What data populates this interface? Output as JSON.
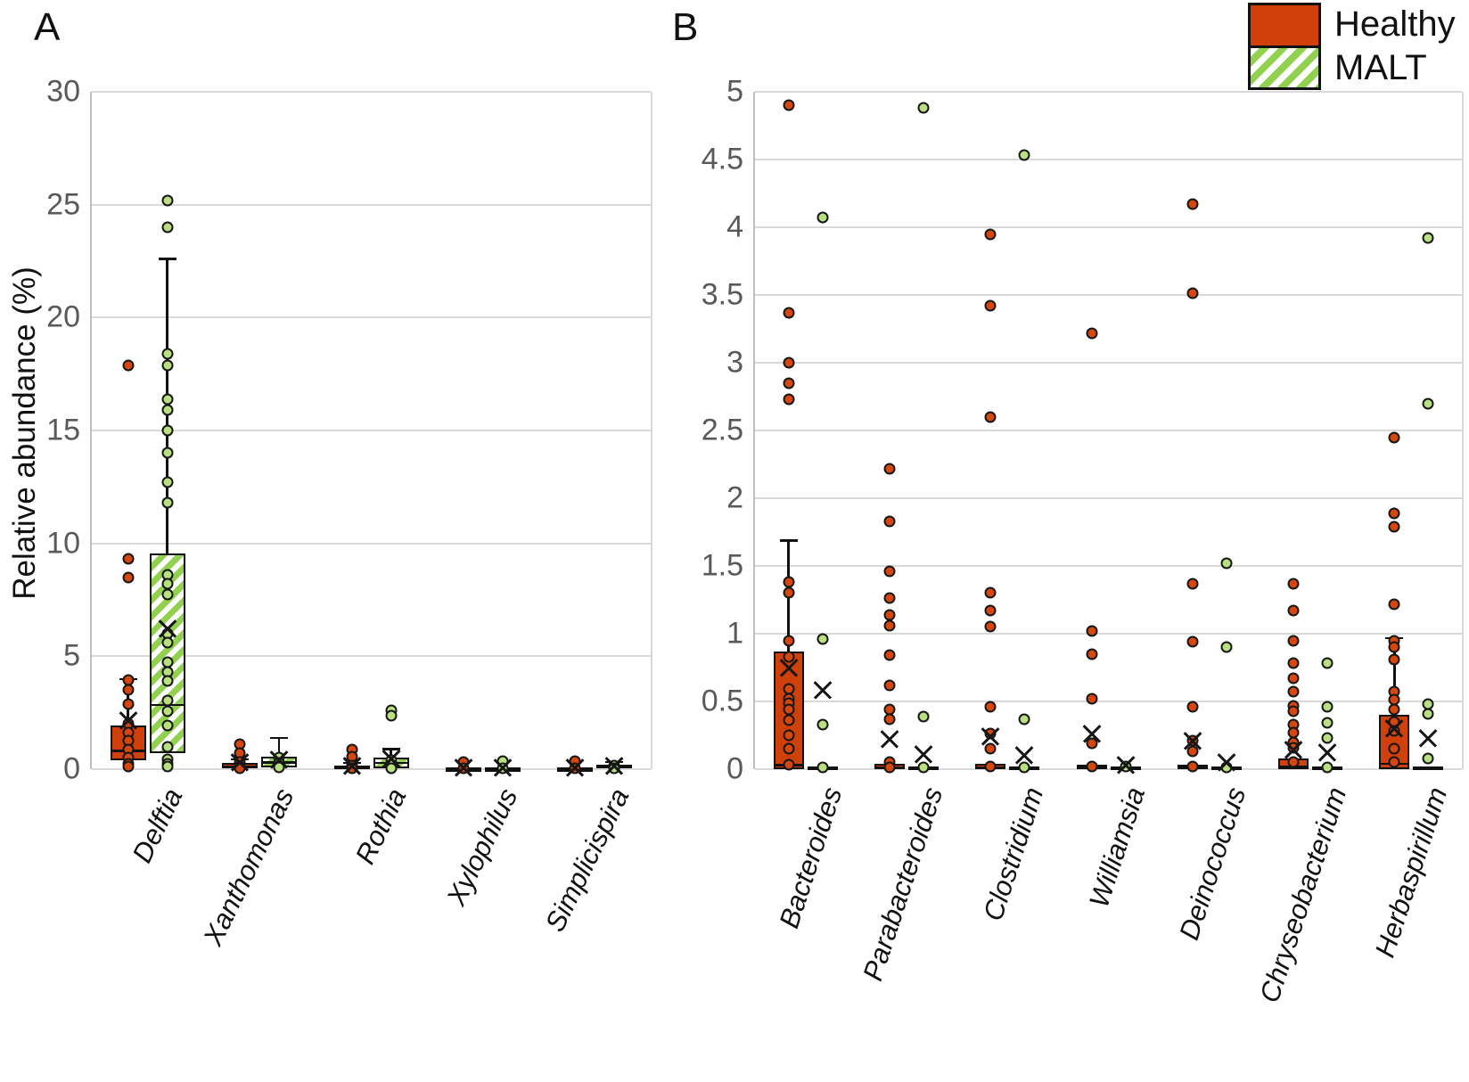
{
  "page": {
    "panel_a_label": "A",
    "panel_b_label": "B"
  },
  "legend": {
    "items": [
      {
        "label": "Healthy",
        "swatch": "solid-red"
      },
      {
        "label": "MALT",
        "swatch": "green-diagonal-hatch"
      }
    ]
  },
  "colors": {
    "healthy_fill": "#cf400b",
    "healthy_point_fill": "#d6470d",
    "malt_stripe": "#92d050",
    "malt_point_fill": "#b9e07f",
    "grid": "#d9d9d9",
    "axis": "#bfbfbf",
    "tick_text": "#595959",
    "marker_outline": "#161616"
  },
  "chart_data": [
    {
      "id": "A",
      "type": "box",
      "title": "",
      "ylabel": "Relative abundance (%)",
      "ylim": [
        0,
        30
      ],
      "yticks": [
        0,
        5,
        10,
        15,
        20,
        25,
        30
      ],
      "ytick_labels": [
        "0",
        "5",
        "10",
        "15",
        "20",
        "25",
        "30"
      ],
      "grid": true,
      "legend_position": "top-right",
      "categories": [
        "Delftia",
        "Xanthomonas",
        "Rothia",
        "Xylophilus",
        "Simplicispira"
      ],
      "series": [
        {
          "name": "Healthy",
          "entries": [
            {
              "box": [
                0.4,
                0.8,
                1.95
              ],
              "whisker_high": 4.0,
              "mean": 2.15,
              "points": [
                17.9,
                9.3,
                8.5,
                3.95,
                3.5,
                2.9,
                2.0,
                1.6,
                1.25,
                0.85,
                0.5,
                0.25,
                0.1
              ]
            },
            {
              "box": [
                0.04,
                0.12,
                0.27
              ],
              "whisker_high": 0.45,
              "mean": 0.3,
              "points": [
                1.1,
                0.72,
                0.3,
                0.12,
                0.03
              ]
            },
            {
              "box": [
                0.02,
                0.07,
                0.16
              ],
              "whisker_high": 0.28,
              "mean": 0.13,
              "points": [
                0.85,
                0.55,
                0.14,
                0.03
              ]
            },
            {
              "box": [
                0,
                0.01,
                0.03
              ],
              "whisker_high": null,
              "mean": 0.06,
              "points": [
                0.3,
                0.02
              ]
            },
            {
              "box": [
                0,
                0.01,
                0.03
              ],
              "whisker_high": null,
              "mean": 0.06,
              "points": [
                0.35,
                0.02
              ]
            }
          ]
        },
        {
          "name": "MALT",
          "entries": [
            {
              "box": [
                0.7,
                2.85,
                9.55
              ],
              "whisker_high": 22.6,
              "mean": 6.2,
              "points": [
                25.2,
                24.0,
                18.4,
                17.9,
                16.4,
                15.9,
                15.0,
                14.0,
                12.7,
                11.8,
                8.6,
                8.2,
                7.75,
                6.0,
                5.6,
                4.75,
                4.3,
                3.9,
                3.05,
                2.55,
                1.95,
                1.0,
                0.45,
                0.25,
                0.1
              ]
            },
            {
              "box": [
                0.07,
                0.3,
                0.55
              ],
              "whisker_high": 1.4,
              "mean": 0.4,
              "points": [
                0.5,
                0.28,
                0.08
              ]
            },
            {
              "box": [
                0.03,
                0.28,
                0.5
              ],
              "whisker_high": 0.9,
              "mean": 0.45,
              "points": [
                2.6,
                2.35,
                0.4,
                0.2,
                0.05
              ]
            },
            {
              "box": [
                0,
                0.01,
                0.03
              ],
              "whisker_high": null,
              "mean": 0.06,
              "points": [
                0.35,
                0.02
              ]
            },
            {
              "box": [
                0.02,
                0.1,
                0.2
              ],
              "whisker_high": 0.32,
              "mean": 0.12,
              "points": [
                0.15,
                0.04
              ]
            }
          ]
        }
      ]
    },
    {
      "id": "B",
      "type": "box",
      "title": "",
      "ylabel": "",
      "ylim": [
        0,
        5
      ],
      "yticks": [
        0,
        0.5,
        1,
        1.5,
        2,
        2.5,
        3,
        3.5,
        4,
        4.5,
        5
      ],
      "ytick_labels": [
        "0",
        "0.5",
        "1",
        "1.5",
        "2",
        "2.5",
        "3",
        "3.5",
        "4",
        "4.5",
        "5"
      ],
      "grid": true,
      "categories": [
        "Bacteroides",
        "Parabacteroides",
        "Clostridium",
        "Williamsia",
        "Deinococcus",
        "Chryseobacterium",
        "Herbaspirillum"
      ],
      "series": [
        {
          "name": "Healthy",
          "entries": [
            {
              "box": [
                0,
                0.03,
                0.87
              ],
              "whisker_high": 1.69,
              "mean": 0.75,
              "points": [
                4.9,
                3.37,
                3.0,
                2.85,
                2.73,
                1.38,
                1.3,
                0.95,
                0.83,
                0.59,
                0.52,
                0.49,
                0.44,
                0.36,
                0.25,
                0.15,
                0.03
              ]
            },
            {
              "box": [
                0,
                0.01,
                0.04
              ],
              "whisker_high": null,
              "mean": 0.22,
              "points": [
                2.22,
                1.83,
                1.46,
                1.26,
                1.14,
                1.06,
                0.84,
                0.62,
                0.44,
                0.37,
                0.05,
                0.01
              ]
            },
            {
              "box": [
                0,
                0.01,
                0.04
              ],
              "whisker_high": null,
              "mean": 0.24,
              "points": [
                3.95,
                3.42,
                2.6,
                1.3,
                1.17,
                1.05,
                0.46,
                0.26,
                0.15,
                0.02
              ]
            },
            {
              "box": [
                0,
                0.01,
                0.03
              ],
              "whisker_high": null,
              "mean": 0.26,
              "points": [
                3.22,
                1.02,
                0.85,
                0.52,
                0.19,
                0.02
              ]
            },
            {
              "box": [
                0,
                0.01,
                0.03
              ],
              "whisker_high": null,
              "mean": 0.21,
              "points": [
                4.17,
                3.51,
                1.37,
                0.94,
                0.46,
                0.21,
                0.13,
                0.02
              ]
            },
            {
              "box": [
                0,
                0.02,
                0.08
              ],
              "whisker_high": null,
              "mean": 0.14,
              "points": [
                1.37,
                1.17,
                0.95,
                0.78,
                0.67,
                0.57,
                0.47,
                0.43,
                0.33,
                0.27,
                0.2,
                0.16,
                0.05
              ]
            },
            {
              "box": [
                0,
                0.04,
                0.4
              ],
              "whisker_high": 0.97,
              "mean": 0.3,
              "points": [
                2.45,
                1.89,
                1.79,
                1.22,
                0.95,
                0.9,
                0.81,
                0.57,
                0.51,
                0.44,
                0.35,
                0.28,
                0.15,
                0.05
              ]
            }
          ]
        },
        {
          "name": "MALT",
          "entries": [
            {
              "box": [
                0,
                0.005,
                0.02
              ],
              "whisker_high": null,
              "mean": 0.58,
              "points": [
                4.07,
                0.96,
                0.33,
                0.01
              ]
            },
            {
              "box": [
                0,
                0.005,
                0.02
              ],
              "whisker_high": null,
              "mean": 0.11,
              "points": [
                4.88,
                0.39,
                0.01
              ]
            },
            {
              "box": [
                0,
                0.005,
                0.02
              ],
              "whisker_high": null,
              "mean": 0.1,
              "points": [
                4.53,
                0.37,
                0.01
              ]
            },
            {
              "box": [
                0,
                0.005,
                0.02
              ],
              "whisker_high": null,
              "mean": 0.03,
              "points": [
                0.02
              ]
            },
            {
              "box": [
                0,
                0.005,
                0.02
              ],
              "whisker_high": null,
              "mean": 0.05,
              "points": [
                1.52,
                0.9,
                0.01
              ]
            },
            {
              "box": [
                0,
                0.005,
                0.02
              ],
              "whisker_high": null,
              "mean": 0.12,
              "points": [
                0.78,
                0.46,
                0.34,
                0.23,
                0.01
              ]
            },
            {
              "box": [
                0,
                0.005,
                0.02
              ],
              "whisker_high": null,
              "mean": 0.23,
              "points": [
                3.92,
                2.7,
                0.48,
                0.41,
                0.08
              ]
            }
          ]
        }
      ]
    }
  ]
}
